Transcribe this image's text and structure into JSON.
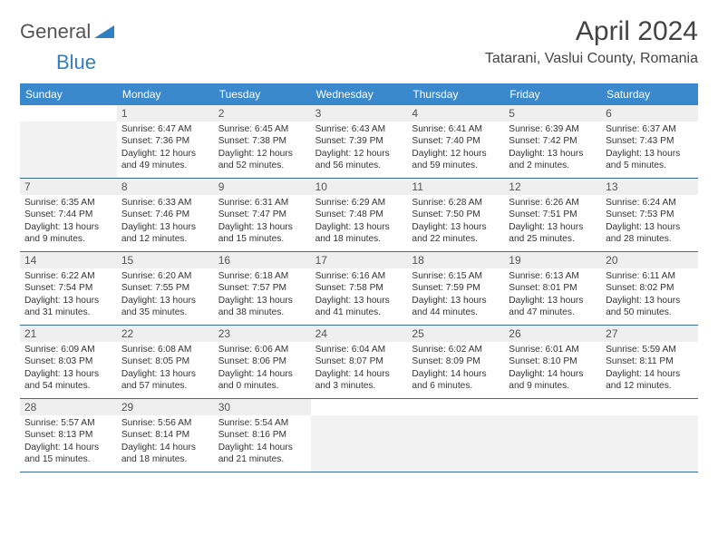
{
  "logo": {
    "general": "General",
    "blue": "Blue"
  },
  "title": "April 2024",
  "location": "Tatarani, Vaslui County, Romania",
  "colors": {
    "header_bg": "#3a89cc",
    "header_text": "#ffffff",
    "daynum_bg": "#efefef",
    "empty_bg": "#f2f2f2",
    "rule": "#3a6a96",
    "logo_blue": "#2f7fc3",
    "logo_gray": "#555555"
  },
  "day_names": [
    "Sunday",
    "Monday",
    "Tuesday",
    "Wednesday",
    "Thursday",
    "Friday",
    "Saturday"
  ],
  "weeks": [
    {
      "nums": [
        "",
        "1",
        "2",
        "3",
        "4",
        "5",
        "6"
      ],
      "cells": [
        null,
        {
          "sr": "Sunrise: 6:47 AM",
          "ss": "Sunset: 7:36 PM",
          "dl": "Daylight: 12 hours and 49 minutes."
        },
        {
          "sr": "Sunrise: 6:45 AM",
          "ss": "Sunset: 7:38 PM",
          "dl": "Daylight: 12 hours and 52 minutes."
        },
        {
          "sr": "Sunrise: 6:43 AM",
          "ss": "Sunset: 7:39 PM",
          "dl": "Daylight: 12 hours and 56 minutes."
        },
        {
          "sr": "Sunrise: 6:41 AM",
          "ss": "Sunset: 7:40 PM",
          "dl": "Daylight: 12 hours and 59 minutes."
        },
        {
          "sr": "Sunrise: 6:39 AM",
          "ss": "Sunset: 7:42 PM",
          "dl": "Daylight: 13 hours and 2 minutes."
        },
        {
          "sr": "Sunrise: 6:37 AM",
          "ss": "Sunset: 7:43 PM",
          "dl": "Daylight: 13 hours and 5 minutes."
        }
      ]
    },
    {
      "nums": [
        "7",
        "8",
        "9",
        "10",
        "11",
        "12",
        "13"
      ],
      "cells": [
        {
          "sr": "Sunrise: 6:35 AM",
          "ss": "Sunset: 7:44 PM",
          "dl": "Daylight: 13 hours and 9 minutes."
        },
        {
          "sr": "Sunrise: 6:33 AM",
          "ss": "Sunset: 7:46 PM",
          "dl": "Daylight: 13 hours and 12 minutes."
        },
        {
          "sr": "Sunrise: 6:31 AM",
          "ss": "Sunset: 7:47 PM",
          "dl": "Daylight: 13 hours and 15 minutes."
        },
        {
          "sr": "Sunrise: 6:29 AM",
          "ss": "Sunset: 7:48 PM",
          "dl": "Daylight: 13 hours and 18 minutes."
        },
        {
          "sr": "Sunrise: 6:28 AM",
          "ss": "Sunset: 7:50 PM",
          "dl": "Daylight: 13 hours and 22 minutes."
        },
        {
          "sr": "Sunrise: 6:26 AM",
          "ss": "Sunset: 7:51 PM",
          "dl": "Daylight: 13 hours and 25 minutes."
        },
        {
          "sr": "Sunrise: 6:24 AM",
          "ss": "Sunset: 7:53 PM",
          "dl": "Daylight: 13 hours and 28 minutes."
        }
      ]
    },
    {
      "nums": [
        "14",
        "15",
        "16",
        "17",
        "18",
        "19",
        "20"
      ],
      "cells": [
        {
          "sr": "Sunrise: 6:22 AM",
          "ss": "Sunset: 7:54 PM",
          "dl": "Daylight: 13 hours and 31 minutes."
        },
        {
          "sr": "Sunrise: 6:20 AM",
          "ss": "Sunset: 7:55 PM",
          "dl": "Daylight: 13 hours and 35 minutes."
        },
        {
          "sr": "Sunrise: 6:18 AM",
          "ss": "Sunset: 7:57 PM",
          "dl": "Daylight: 13 hours and 38 minutes."
        },
        {
          "sr": "Sunrise: 6:16 AM",
          "ss": "Sunset: 7:58 PM",
          "dl": "Daylight: 13 hours and 41 minutes."
        },
        {
          "sr": "Sunrise: 6:15 AM",
          "ss": "Sunset: 7:59 PM",
          "dl": "Daylight: 13 hours and 44 minutes."
        },
        {
          "sr": "Sunrise: 6:13 AM",
          "ss": "Sunset: 8:01 PM",
          "dl": "Daylight: 13 hours and 47 minutes."
        },
        {
          "sr": "Sunrise: 6:11 AM",
          "ss": "Sunset: 8:02 PM",
          "dl": "Daylight: 13 hours and 50 minutes."
        }
      ]
    },
    {
      "nums": [
        "21",
        "22",
        "23",
        "24",
        "25",
        "26",
        "27"
      ],
      "cells": [
        {
          "sr": "Sunrise: 6:09 AM",
          "ss": "Sunset: 8:03 PM",
          "dl": "Daylight: 13 hours and 54 minutes."
        },
        {
          "sr": "Sunrise: 6:08 AM",
          "ss": "Sunset: 8:05 PM",
          "dl": "Daylight: 13 hours and 57 minutes."
        },
        {
          "sr": "Sunrise: 6:06 AM",
          "ss": "Sunset: 8:06 PM",
          "dl": "Daylight: 14 hours and 0 minutes."
        },
        {
          "sr": "Sunrise: 6:04 AM",
          "ss": "Sunset: 8:07 PM",
          "dl": "Daylight: 14 hours and 3 minutes."
        },
        {
          "sr": "Sunrise: 6:02 AM",
          "ss": "Sunset: 8:09 PM",
          "dl": "Daylight: 14 hours and 6 minutes."
        },
        {
          "sr": "Sunrise: 6:01 AM",
          "ss": "Sunset: 8:10 PM",
          "dl": "Daylight: 14 hours and 9 minutes."
        },
        {
          "sr": "Sunrise: 5:59 AM",
          "ss": "Sunset: 8:11 PM",
          "dl": "Daylight: 14 hours and 12 minutes."
        }
      ]
    },
    {
      "nums": [
        "28",
        "29",
        "30",
        "",
        "",
        "",
        ""
      ],
      "cells": [
        {
          "sr": "Sunrise: 5:57 AM",
          "ss": "Sunset: 8:13 PM",
          "dl": "Daylight: 14 hours and 15 minutes."
        },
        {
          "sr": "Sunrise: 5:56 AM",
          "ss": "Sunset: 8:14 PM",
          "dl": "Daylight: 14 hours and 18 minutes."
        },
        {
          "sr": "Sunrise: 5:54 AM",
          "ss": "Sunset: 8:16 PM",
          "dl": "Daylight: 14 hours and 21 minutes."
        },
        null,
        null,
        null,
        null
      ]
    }
  ]
}
